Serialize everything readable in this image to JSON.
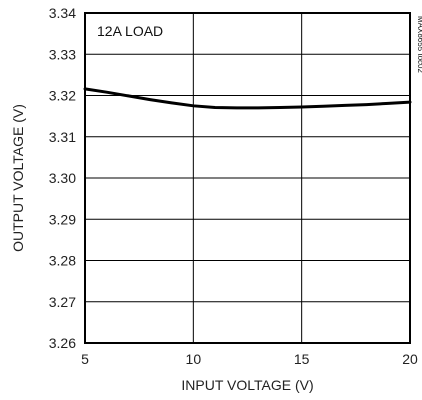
{
  "chart_data": {
    "type": "line",
    "title": "",
    "xlabel": "INPUT VOLTAGE (V)",
    "ylabel": "OUTPUT VOLTAGE (V)",
    "xlim": [
      5,
      20
    ],
    "ylim": [
      3.26,
      3.34
    ],
    "x_ticks": [
      5,
      10,
      15,
      20
    ],
    "y_ticks": [
      3.26,
      3.27,
      3.28,
      3.29,
      3.3,
      3.31,
      3.32,
      3.33,
      3.34
    ],
    "x_tick_labels": [
      "5",
      "10",
      "15",
      "20"
    ],
    "y_tick_labels": [
      "3.26",
      "3.27",
      "3.28",
      "3.29",
      "3.30",
      "3.31",
      "3.32",
      "3.33",
      "3.34"
    ],
    "grid": true,
    "series": [
      {
        "x": [
          5,
          6,
          7,
          8,
          9,
          10,
          11,
          12,
          13,
          14,
          15,
          16,
          17,
          18,
          19,
          20
        ],
        "values": [
          3.3216,
          3.3208,
          3.3199,
          3.319,
          3.3182,
          3.3175,
          3.3171,
          3.317,
          3.317,
          3.3171,
          3.3172,
          3.3174,
          3.3176,
          3.3178,
          3.3181,
          3.3184
        ]
      }
    ],
    "annotations": [
      "12A LOAD"
    ],
    "figure_id": "MAX8655 toc02",
    "line_color": "#000000",
    "grid_color": "#000000"
  }
}
